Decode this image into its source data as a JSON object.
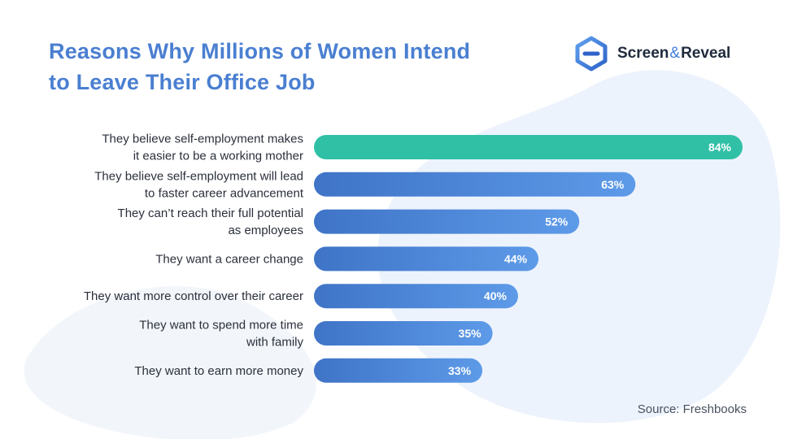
{
  "title": {
    "line1": "Reasons Why Millions of Women Intend",
    "line2": "to Leave Their Office Job"
  },
  "brand": {
    "name_left": "Screen",
    "ampersand": "&",
    "name_right": "Reveal",
    "icon": "screen-reveal-logo-icon"
  },
  "source": "Source: Freshbooks",
  "colors": {
    "title": "#4a7fd1",
    "highlight_bar": "#30c0a6",
    "bar_start": "#3f74c7",
    "bar_end": "#5d9ae8",
    "label_text": "#2a2f3a",
    "value_text": "#ffffff",
    "background_blob": "#eaf1fb"
  },
  "chart_data": {
    "type": "bar",
    "orientation": "horizontal",
    "categories": [
      [
        "They believe self-employment makes",
        "it easier to be a working mother"
      ],
      [
        "They believe self-employment will lead",
        "to faster career advancement"
      ],
      [
        "They can’t reach their full potential",
        "as employees"
      ],
      [
        "They want a career change"
      ],
      [
        "They want more control over their career"
      ],
      [
        "They want to spend more time",
        "with family"
      ],
      [
        "They want to earn more money"
      ]
    ],
    "values": [
      84,
      63,
      52,
      44,
      40,
      35,
      33
    ],
    "value_labels": [
      "84%",
      "63%",
      "52%",
      "44%",
      "40%",
      "35%",
      "33%"
    ],
    "unit": "%",
    "highlight_index": 0,
    "xlim": [
      0,
      84
    ],
    "grid": false,
    "legend": "none"
  }
}
